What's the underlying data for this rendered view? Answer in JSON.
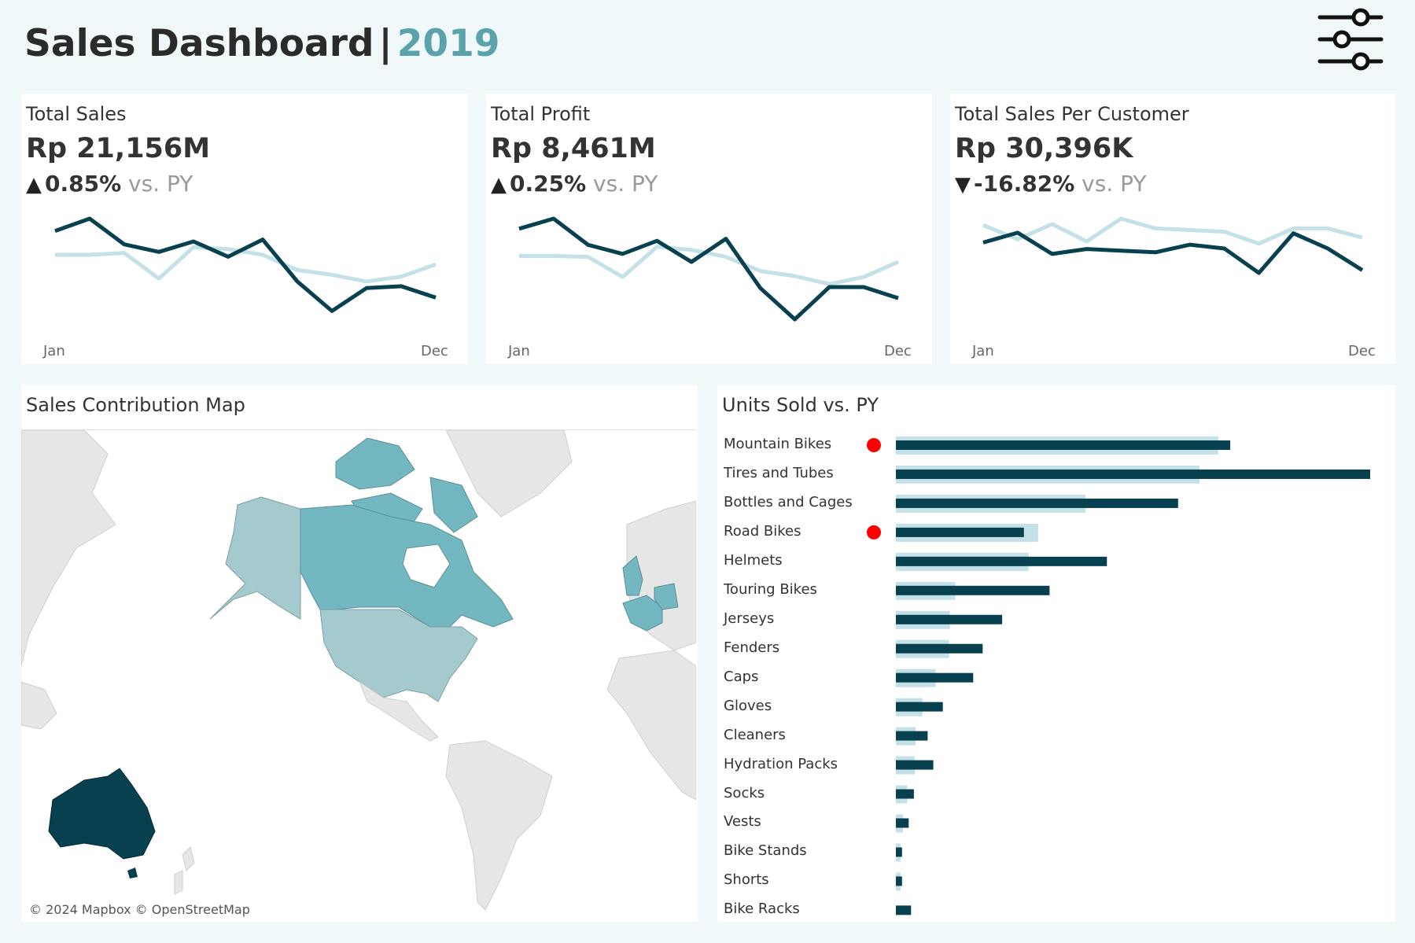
{
  "header": {
    "title": "Sales Dashboard",
    "separator": "|",
    "year": "2019"
  },
  "kpis": [
    {
      "label": "Total Sales",
      "value": "Rp 21,156M",
      "direction": "up",
      "arrow": "▲",
      "delta": "0.85%",
      "vs": "vs. PY",
      "x_start": "Jan",
      "x_end": "Dec",
      "current": [
        0.87,
        1.0,
        0.73,
        0.65,
        0.76,
        0.6,
        0.78,
        0.34,
        0.03,
        0.27,
        0.29,
        0.17
      ],
      "previous": [
        0.62,
        0.62,
        0.64,
        0.37,
        0.7,
        0.68,
        0.62,
        0.46,
        0.41,
        0.34,
        0.39,
        0.52
      ]
    },
    {
      "label": "Total Profit",
      "value": "Rp 8,461M",
      "direction": "up",
      "arrow": "▲",
      "delta": "0.25%",
      "vs": "vs. PY",
      "x_start": "Jan",
      "x_end": "Dec",
      "current": [
        0.9,
        1.0,
        0.74,
        0.65,
        0.78,
        0.57,
        0.8,
        0.31,
        0.0,
        0.32,
        0.32,
        0.21
      ],
      "previous": [
        0.63,
        0.63,
        0.62,
        0.42,
        0.72,
        0.69,
        0.62,
        0.48,
        0.43,
        0.35,
        0.42,
        0.57
      ]
    },
    {
      "label": "Total Sales Per Customer",
      "value": "Rp 30,396K",
      "direction": "down",
      "arrow": "▼",
      "delta": "-16.82%",
      "vs": "vs. PY",
      "x_start": "Jan",
      "x_end": "Dec",
      "current": [
        0.56,
        0.74,
        0.35,
        0.44,
        0.41,
        0.38,
        0.52,
        0.45,
        0.0,
        0.73,
        0.45,
        0.05
      ],
      "previous": [
        0.88,
        0.62,
        0.9,
        0.58,
        1.0,
        0.82,
        0.79,
        0.76,
        0.54,
        0.82,
        0.82,
        0.65
      ]
    }
  ],
  "map": {
    "title": "Sales Contribution Map",
    "credit": "© 2024 Mapbox © OpenStreetMap"
  },
  "units": {
    "title": "Units Sold vs. PY"
  },
  "colors": {
    "current": "#07404e",
    "previous": "#c5e1e8",
    "alert": "#ff0000",
    "map_high": "#07404e",
    "map_mid": "#73b8c1",
    "map_low": "#a5cace",
    "land": "#e6e6e6"
  },
  "chart_data": {
    "type": "bar",
    "orientation": "horizontal",
    "categories": [
      "Mountain Bikes",
      "Tires and Tubes",
      "Bottles and Cages",
      "Road Bikes",
      "Helmets",
      "Touring Bikes",
      "Jerseys",
      "Fenders",
      "Caps",
      "Gloves",
      "Cleaners",
      "Hydration Packs",
      "Socks",
      "Vests",
      "Bike Stands",
      "Shorts",
      "Bike Racks"
    ],
    "series": [
      {
        "values": [
          70.5,
          100,
          59.5,
          27,
          44.5,
          32.4,
          22.4,
          18.3,
          16.3,
          9.9,
          6.7,
          7.9,
          3.8,
          2.7,
          1.3,
          1.3,
          3.2
        ]
      },
      {
        "values": [
          68,
          64,
          40,
          30,
          28,
          12.5,
          11.4,
          11.2,
          8.4,
          5.6,
          4.2,
          4.0,
          2.4,
          1.5,
          1.0,
          1.0,
          0.0
        ]
      }
    ],
    "alerts": [
      true,
      false,
      false,
      true,
      false,
      false,
      false,
      false,
      false,
      false,
      false,
      false,
      false,
      false,
      false,
      false,
      false
    ]
  }
}
